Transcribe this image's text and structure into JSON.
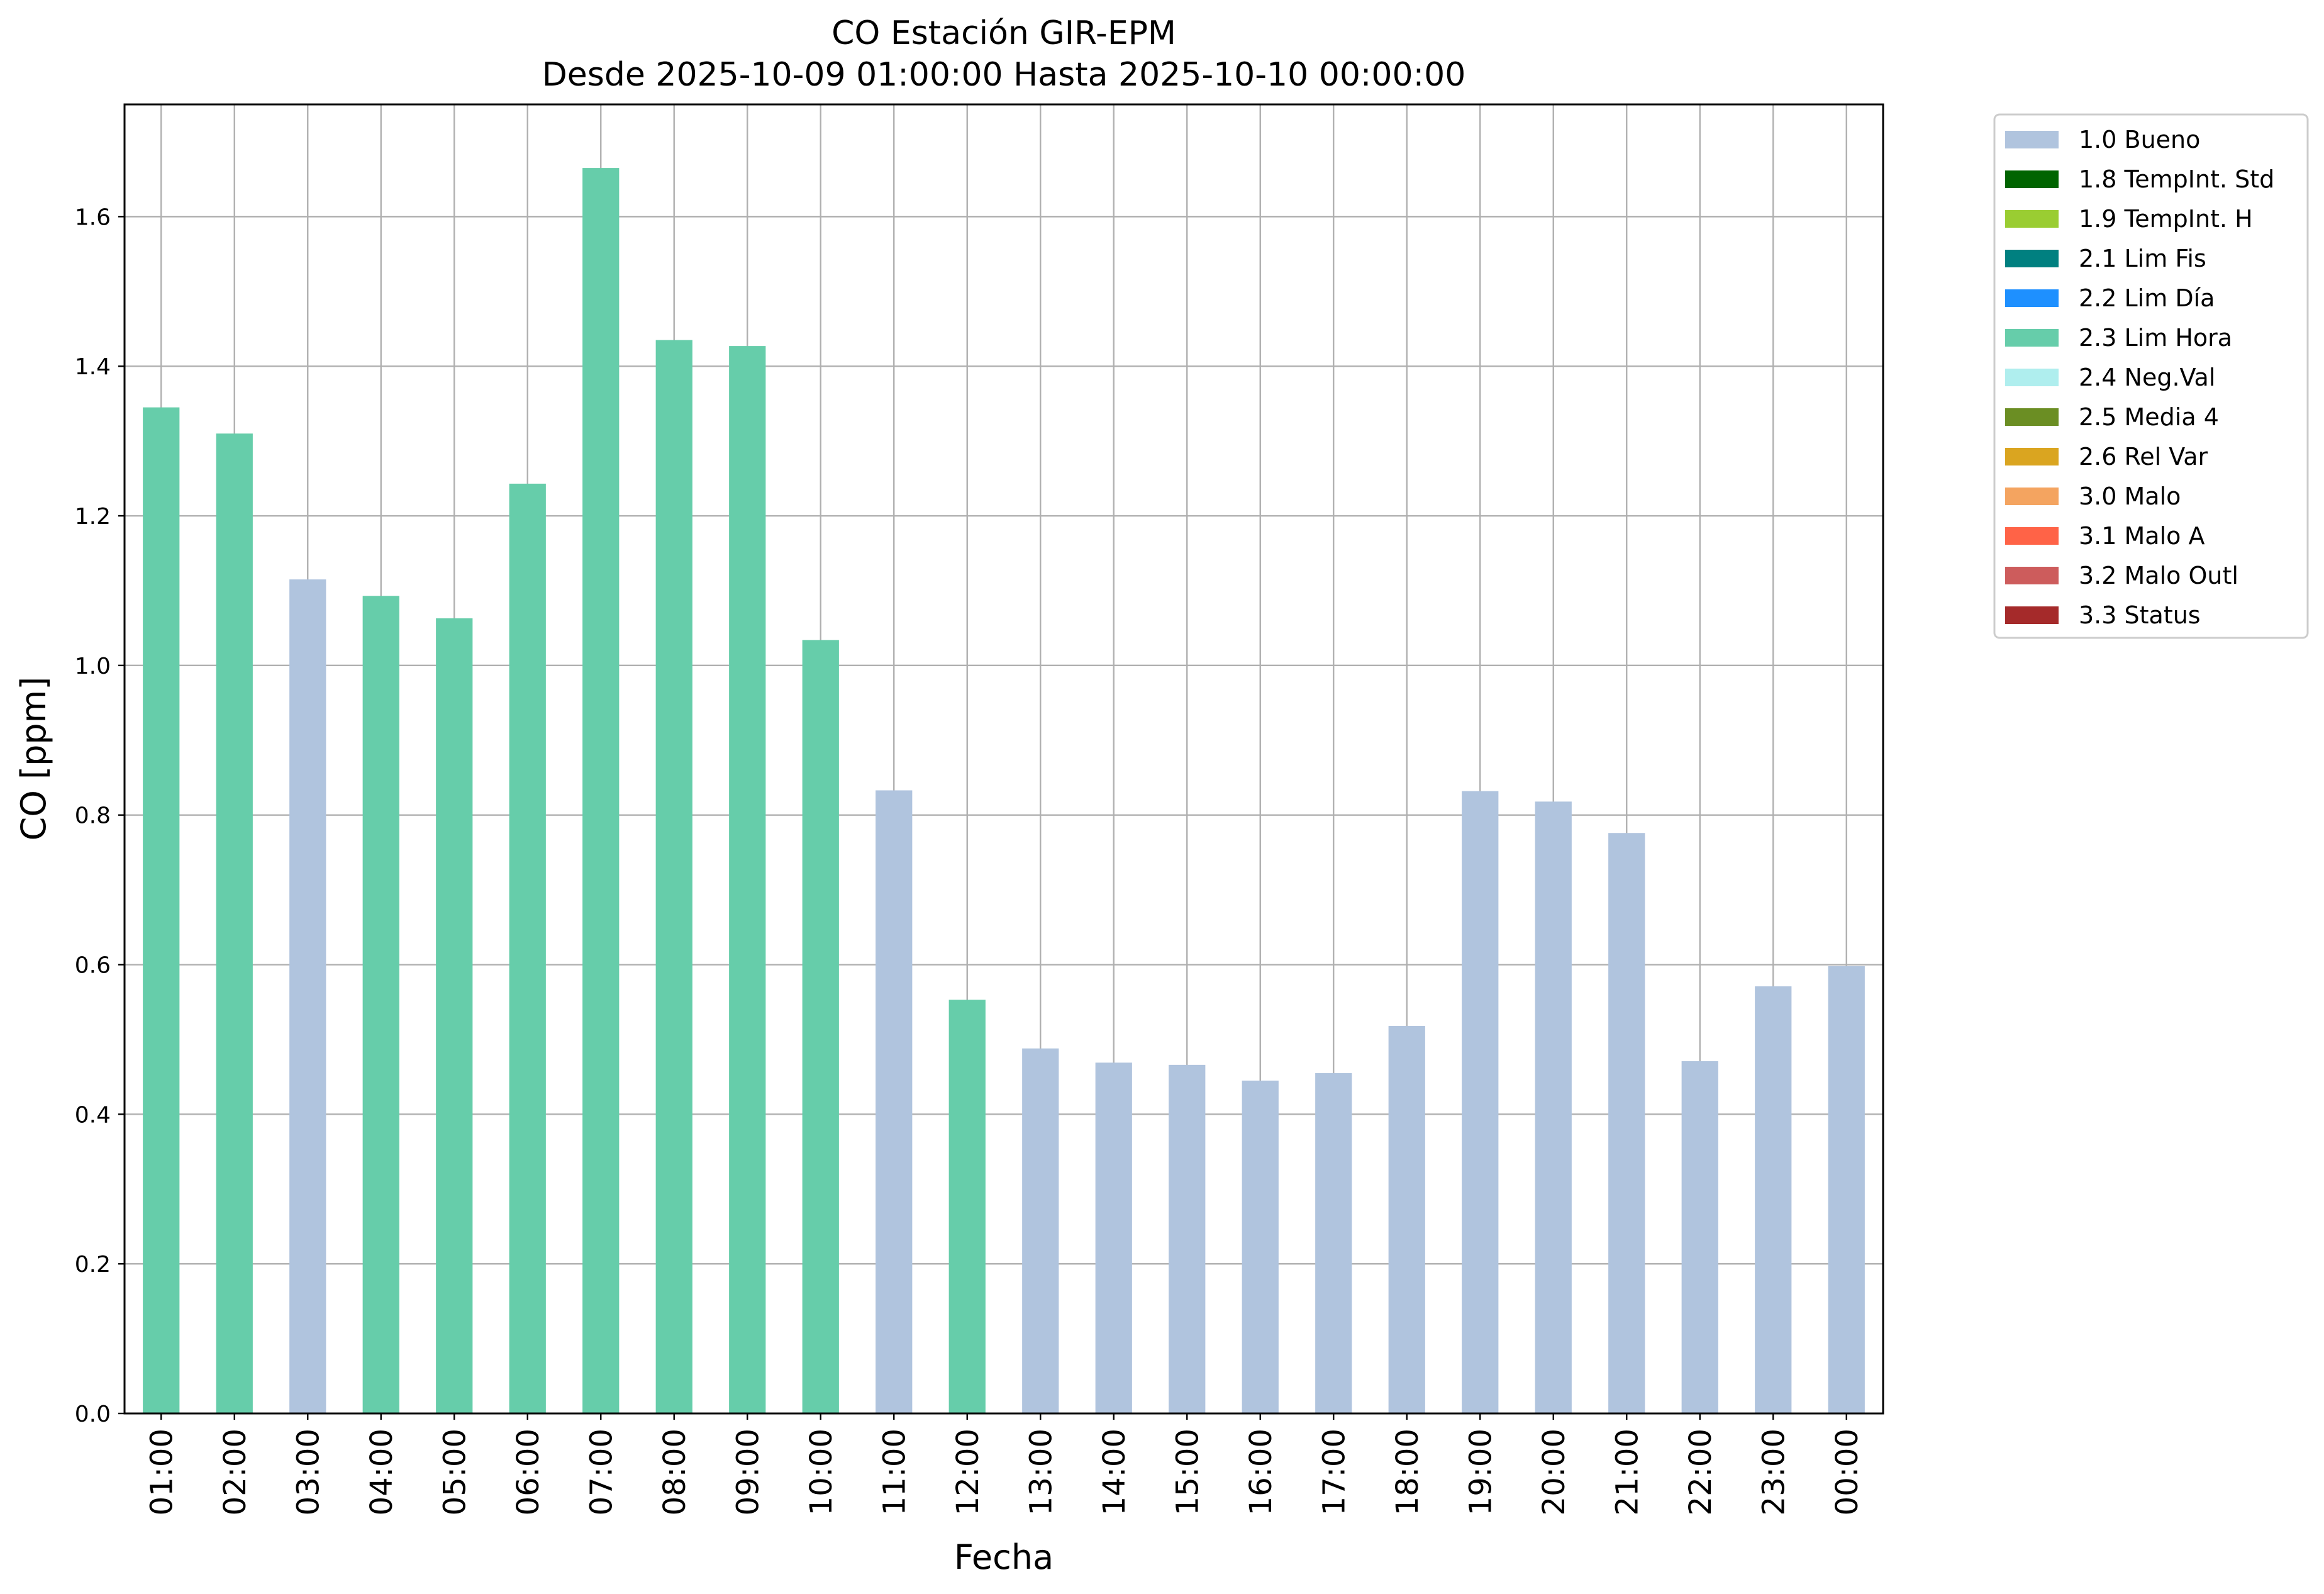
{
  "chart_data": {
    "type": "bar",
    "title": "CO Estación GIR-EPM",
    "subtitle": "Desde 2025-10-09 01:00:00 Hasta 2025-10-10 00:00:00",
    "xlabel": "Fecha",
    "ylabel": "CO [ppm]",
    "ylim": [
      0,
      1.75
    ],
    "yticks": [
      "0.0",
      "0.2",
      "0.4",
      "0.6",
      "0.8",
      "1.0",
      "1.2",
      "1.4",
      "1.6"
    ],
    "ytick_values": [
      0,
      0.2,
      0.4,
      0.6,
      0.8,
      1.0,
      1.2,
      1.4,
      1.6
    ],
    "grid": true,
    "legend_position": "outside-top-right",
    "categories": [
      "01:00",
      "02:00",
      "03:00",
      "04:00",
      "05:00",
      "06:00",
      "07:00",
      "08:00",
      "09:00",
      "10:00",
      "11:00",
      "12:00",
      "13:00",
      "14:00",
      "15:00",
      "16:00",
      "17:00",
      "18:00",
      "19:00",
      "20:00",
      "21:00",
      "22:00",
      "23:00",
      "00:00"
    ],
    "values": [
      1.345,
      1.31,
      1.115,
      1.093,
      1.063,
      1.243,
      1.665,
      1.435,
      1.427,
      1.034,
      0.833,
      0.553,
      0.488,
      0.469,
      0.466,
      0.445,
      0.455,
      0.518,
      0.832,
      0.818,
      0.776,
      0.471,
      0.571,
      0.598
    ],
    "flags": [
      "2.3 Lim Hora",
      "2.3 Lim Hora",
      "1.0 Bueno",
      "2.3 Lim Hora",
      "2.3 Lim Hora",
      "2.3 Lim Hora",
      "2.3 Lim Hora",
      "2.3 Lim Hora",
      "2.3 Lim Hora",
      "2.3 Lim Hora",
      "1.0 Bueno",
      "2.3 Lim Hora",
      "1.0 Bueno",
      "1.0 Bueno",
      "1.0 Bueno",
      "1.0 Bueno",
      "1.0 Bueno",
      "1.0 Bueno",
      "1.0 Bueno",
      "1.0 Bueno",
      "1.0 Bueno",
      "1.0 Bueno",
      "1.0 Bueno",
      "1.0 Bueno"
    ],
    "legend": [
      {
        "label": "1.0 Bueno",
        "color": "#b0c4de"
      },
      {
        "label": "1.8 TempInt. Std",
        "color": "#006400"
      },
      {
        "label": "1.9 TempInt. H",
        "color": "#9acd32"
      },
      {
        "label": "2.1 Lim Fis",
        "color": "#008080"
      },
      {
        "label": "2.2 Lim Día",
        "color": "#1e90ff"
      },
      {
        "label": "2.3 Lim Hora",
        "color": "#66cdaa"
      },
      {
        "label": "2.4 Neg.Val",
        "color": "#afeeee"
      },
      {
        "label": "2.5 Media 4",
        "color": "#6b8e23"
      },
      {
        "label": "2.6 Rel Var",
        "color": "#daa520"
      },
      {
        "label": "3.0 Malo",
        "color": "#f4a460"
      },
      {
        "label": "3.1 Malo A",
        "color": "#ff6347"
      },
      {
        "label": "3.2 Malo Outl",
        "color": "#cd5c5c"
      },
      {
        "label": "3.3 Status",
        "color": "#a52a2a"
      }
    ]
  }
}
